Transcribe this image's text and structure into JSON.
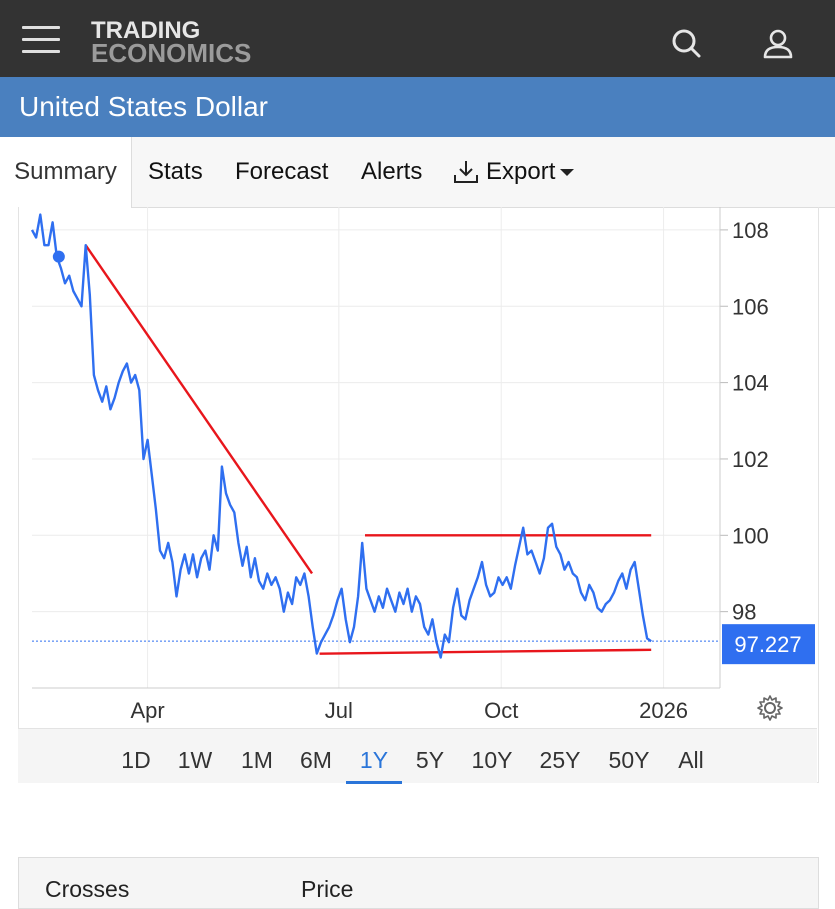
{
  "brand": {
    "line1": "TRADING",
    "line2": "ECONOMICS"
  },
  "page": {
    "title": "United States Dollar"
  },
  "tabs": [
    {
      "label": "Summary"
    },
    {
      "label": "Stats"
    },
    {
      "label": "Forecast"
    },
    {
      "label": "Alerts"
    },
    {
      "label": "Export"
    }
  ],
  "ranges": [
    "1D",
    "1W",
    "1M",
    "6M",
    "1Y",
    "5Y",
    "10Y",
    "25Y",
    "50Y",
    "All"
  ],
  "active_range": "1Y",
  "current_value": "97.227",
  "colors": {
    "line": "#2f6ff0",
    "trend": "#e8161c",
    "brand_bar": "#4a80bf",
    "topbar": "#333333"
  },
  "table": {
    "headers": [
      "Crosses",
      "Price"
    ]
  },
  "chart_data": {
    "type": "line",
    "y_ticks": [
      "108",
      "106",
      "104",
      "102",
      "100",
      "98"
    ],
    "x_ticks": [
      "Apr",
      "Jul",
      "Oct",
      "2026"
    ],
    "ylim": [
      96,
      108.6
    ],
    "xlim": [
      0,
      1
    ],
    "series": [
      {
        "values": [
          [
            0.0,
            108.0
          ],
          [
            0.006,
            107.8
          ],
          [
            0.012,
            108.4
          ],
          [
            0.018,
            107.6
          ],
          [
            0.024,
            107.6
          ],
          [
            0.03,
            108.2
          ],
          [
            0.036,
            107.3
          ],
          [
            0.042,
            107.0
          ],
          [
            0.048,
            106.6
          ],
          [
            0.054,
            106.8
          ],
          [
            0.06,
            106.4
          ],
          [
            0.066,
            106.2
          ],
          [
            0.072,
            106.0
          ],
          [
            0.078,
            107.6
          ],
          [
            0.084,
            106.3
          ],
          [
            0.09,
            104.2
          ],
          [
            0.096,
            103.8
          ],
          [
            0.102,
            103.5
          ],
          [
            0.108,
            103.9
          ],
          [
            0.114,
            103.3
          ],
          [
            0.12,
            103.6
          ],
          [
            0.126,
            104.0
          ],
          [
            0.132,
            104.3
          ],
          [
            0.138,
            104.5
          ],
          [
            0.144,
            104.0
          ],
          [
            0.15,
            104.2
          ],
          [
            0.156,
            103.8
          ],
          [
            0.162,
            102.0
          ],
          [
            0.168,
            102.5
          ],
          [
            0.174,
            101.6
          ],
          [
            0.18,
            100.7
          ],
          [
            0.186,
            99.6
          ],
          [
            0.192,
            99.4
          ],
          [
            0.198,
            99.8
          ],
          [
            0.204,
            99.3
          ],
          [
            0.21,
            98.4
          ],
          [
            0.216,
            99.1
          ],
          [
            0.222,
            99.5
          ],
          [
            0.228,
            99.0
          ],
          [
            0.234,
            99.5
          ],
          [
            0.24,
            98.9
          ],
          [
            0.246,
            99.4
          ],
          [
            0.252,
            99.6
          ],
          [
            0.258,
            99.1
          ],
          [
            0.264,
            100.0
          ],
          [
            0.27,
            99.6
          ],
          [
            0.276,
            101.8
          ],
          [
            0.282,
            101.1
          ],
          [
            0.288,
            100.8
          ],
          [
            0.294,
            100.6
          ],
          [
            0.3,
            99.8
          ],
          [
            0.306,
            99.2
          ],
          [
            0.312,
            99.7
          ],
          [
            0.318,
            98.9
          ],
          [
            0.324,
            99.4
          ],
          [
            0.33,
            98.8
          ],
          [
            0.336,
            98.6
          ],
          [
            0.342,
            99.0
          ],
          [
            0.348,
            98.7
          ],
          [
            0.354,
            98.9
          ],
          [
            0.36,
            98.6
          ],
          [
            0.366,
            98.0
          ],
          [
            0.372,
            98.5
          ],
          [
            0.378,
            98.2
          ],
          [
            0.384,
            98.9
          ],
          [
            0.39,
            98.7
          ],
          [
            0.396,
            99.0
          ],
          [
            0.402,
            98.4
          ],
          [
            0.408,
            97.6
          ],
          [
            0.414,
            96.9
          ],
          [
            0.42,
            97.2
          ],
          [
            0.426,
            97.4
          ],
          [
            0.432,
            97.6
          ],
          [
            0.438,
            97.9
          ],
          [
            0.444,
            98.3
          ],
          [
            0.45,
            98.6
          ],
          [
            0.456,
            97.8
          ],
          [
            0.462,
            97.2
          ],
          [
            0.468,
            97.6
          ],
          [
            0.474,
            98.4
          ],
          [
            0.48,
            99.8
          ],
          [
            0.486,
            98.6
          ],
          [
            0.492,
            98.3
          ],
          [
            0.498,
            98.0
          ],
          [
            0.504,
            98.4
          ],
          [
            0.51,
            98.1
          ],
          [
            0.516,
            98.6
          ],
          [
            0.522,
            98.3
          ],
          [
            0.528,
            98.0
          ],
          [
            0.534,
            98.5
          ],
          [
            0.54,
            98.2
          ],
          [
            0.546,
            98.6
          ],
          [
            0.552,
            98.0
          ],
          [
            0.558,
            98.4
          ],
          [
            0.564,
            98.2
          ],
          [
            0.57,
            97.6
          ],
          [
            0.576,
            97.4
          ],
          [
            0.582,
            97.8
          ],
          [
            0.588,
            97.2
          ],
          [
            0.594,
            96.8
          ],
          [
            0.6,
            97.4
          ],
          [
            0.606,
            97.2
          ],
          [
            0.612,
            98.1
          ],
          [
            0.618,
            98.6
          ],
          [
            0.624,
            97.9
          ],
          [
            0.63,
            97.8
          ],
          [
            0.636,
            98.3
          ],
          [
            0.642,
            98.6
          ],
          [
            0.648,
            98.9
          ],
          [
            0.654,
            99.3
          ],
          [
            0.66,
            98.7
          ],
          [
            0.666,
            98.4
          ],
          [
            0.672,
            98.5
          ],
          [
            0.678,
            98.9
          ],
          [
            0.684,
            98.7
          ],
          [
            0.69,
            98.9
          ],
          [
            0.696,
            98.6
          ],
          [
            0.702,
            99.2
          ],
          [
            0.708,
            99.7
          ],
          [
            0.714,
            100.2
          ],
          [
            0.72,
            99.5
          ],
          [
            0.726,
            99.6
          ],
          [
            0.732,
            99.3
          ],
          [
            0.738,
            99.0
          ],
          [
            0.744,
            99.4
          ],
          [
            0.75,
            100.2
          ],
          [
            0.756,
            100.3
          ],
          [
            0.762,
            99.7
          ],
          [
            0.768,
            99.5
          ],
          [
            0.774,
            99.1
          ],
          [
            0.78,
            99.3
          ],
          [
            0.786,
            99.0
          ],
          [
            0.792,
            98.9
          ],
          [
            0.798,
            98.5
          ],
          [
            0.804,
            98.3
          ],
          [
            0.81,
            98.7
          ],
          [
            0.816,
            98.5
          ],
          [
            0.822,
            98.1
          ],
          [
            0.828,
            98.0
          ],
          [
            0.834,
            98.2
          ],
          [
            0.84,
            98.3
          ],
          [
            0.846,
            98.5
          ],
          [
            0.852,
            98.8
          ],
          [
            0.858,
            99.0
          ],
          [
            0.864,
            98.6
          ],
          [
            0.87,
            99.1
          ],
          [
            0.876,
            99.3
          ],
          [
            0.882,
            98.6
          ],
          [
            0.888,
            97.9
          ],
          [
            0.894,
            97.3
          ],
          [
            0.9,
            97.227
          ]
        ]
      }
    ],
    "trendlines": [
      {
        "from": [
          0.078,
          107.6
        ],
        "to": [
          0.407,
          99.0
        ]
      },
      {
        "from": [
          0.484,
          100.0
        ],
        "to": [
          0.9,
          100.0
        ]
      },
      {
        "from": [
          0.418,
          96.9
        ],
        "to": [
          0.9,
          97.0
        ]
      }
    ],
    "start_marker": [
      0.039,
      107.3
    ],
    "current_line_value": 97.227,
    "grid": true
  }
}
